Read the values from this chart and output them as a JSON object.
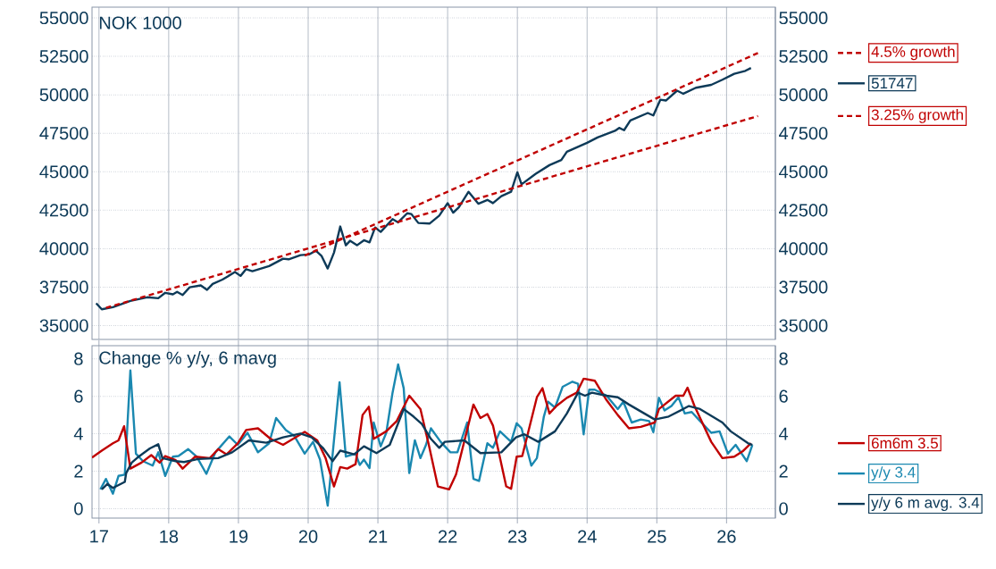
{
  "chart_data": [
    {
      "type": "line",
      "title": "NOK 1000",
      "xlim": [
        2016.9,
        2026.7
      ],
      "ylim": [
        34100,
        55700
      ],
      "y2lim": [
        34100,
        55700
      ],
      "xticks": [
        {
          "value": 2017,
          "label": null
        },
        {
          "value": 2018,
          "label": null
        },
        {
          "value": 2019,
          "label": null
        },
        {
          "value": 2020,
          "label": null
        },
        {
          "value": 2021,
          "label": null
        },
        {
          "value": 2022,
          "label": null
        },
        {
          "value": 2023,
          "label": null
        },
        {
          "value": 2024,
          "label": null
        },
        {
          "value": 2025,
          "label": null
        },
        {
          "value": 2026,
          "label": null
        }
      ],
      "yticks": [
        35000,
        37500,
        40000,
        42500,
        45000,
        47500,
        50000,
        52500,
        55000
      ],
      "y2ticks": [
        35000,
        37500,
        40000,
        42500,
        45000,
        47500,
        50000,
        52500,
        55000
      ],
      "tick_labels": "y",
      "grid": true,
      "legend": "right",
      "series": [
        {
          "name": "51747",
          "color": "#0d3a58",
          "x": [
            2016.96,
            2017.04,
            2017.2,
            2017.45,
            2017.69,
            2017.85,
            2017.95,
            2018.06,
            2018.12,
            2018.2,
            2018.3,
            2018.46,
            2018.55,
            2018.63,
            2018.77,
            2018.95,
            2019.03,
            2019.11,
            2019.2,
            2019.44,
            2019.64,
            2019.72,
            2019.89,
            2020.01,
            2020.11,
            2020.19,
            2020.28,
            2020.37,
            2020.46,
            2020.54,
            2020.6,
            2020.7,
            2020.8,
            2020.88,
            2020.96,
            2021.04,
            2021.21,
            2021.29,
            2021.42,
            2021.48,
            2021.58,
            2021.74,
            2021.88,
            2022.0,
            2022.08,
            2022.16,
            2022.3,
            2022.44,
            2022.57,
            2022.65,
            2022.77,
            2022.91,
            2023.0,
            2023.06,
            2023.26,
            2023.46,
            2023.63,
            2023.71,
            2024.0,
            2024.15,
            2024.4,
            2024.46,
            2024.53,
            2024.62,
            2024.87,
            2024.95,
            2025.05,
            2025.13,
            2025.29,
            2025.38,
            2025.56,
            2025.78,
            2025.94,
            2026.11,
            2026.27,
            2026.35
          ],
          "values": [
            36450,
            36060,
            36200,
            36600,
            36840,
            36780,
            37130,
            37030,
            37190,
            36990,
            37490,
            37610,
            37320,
            37710,
            37990,
            38480,
            38230,
            38670,
            38540,
            38870,
            39350,
            39310,
            39580,
            39620,
            39870,
            39540,
            38710,
            39740,
            41440,
            40220,
            40510,
            40220,
            40550,
            40410,
            41380,
            41090,
            41920,
            41710,
            42300,
            42250,
            41670,
            41630,
            42150,
            42960,
            42340,
            42690,
            43700,
            42920,
            43170,
            42960,
            43410,
            43700,
            44960,
            44180,
            44860,
            45430,
            45760,
            46300,
            46880,
            47230,
            47660,
            47850,
            47700,
            48330,
            48820,
            48660,
            49680,
            49630,
            50270,
            50070,
            50460,
            50650,
            50980,
            51370,
            51560,
            51747
          ]
        },
        {
          "name": "4.5% growth",
          "type": "line",
          "color": "#c00000",
          "line_style": "dashed",
          "x": [
            2019.95,
            2026.45
          ],
          "values": [
            39550,
            52720
          ]
        },
        {
          "name": "3.25% growth",
          "type": "line",
          "color": "#c00000",
          "line_style": "dashed",
          "x": [
            2017.1,
            2026.45
          ],
          "values": [
            36150,
            48620
          ]
        }
      ]
    },
    {
      "type": "line",
      "title": "Change % y/y, 6 mavg",
      "xlim": [
        2016.9,
        2026.7
      ],
      "ylim": [
        -0.5,
        8.7
      ],
      "y2lim": [
        -0.5,
        8.7
      ],
      "xticks": [
        {
          "value": 2017,
          "label": "17"
        },
        {
          "value": 2018,
          "label": "18"
        },
        {
          "value": 2019,
          "label": "19"
        },
        {
          "value": 2020,
          "label": "20"
        },
        {
          "value": 2021,
          "label": "21"
        },
        {
          "value": 2022,
          "label": "22"
        },
        {
          "value": 2023,
          "label": "23"
        },
        {
          "value": 2024,
          "label": "24"
        },
        {
          "value": 2025,
          "label": "25"
        },
        {
          "value": 2026,
          "label": "26"
        }
      ],
      "yticks": [
        0,
        2,
        4,
        6,
        8
      ],
      "y2ticks": [
        0,
        2,
        4,
        6,
        8
      ],
      "grid": true,
      "legend": "right",
      "series": [
        {
          "name": "y/y 3.4",
          "color": "#1a88b0",
          "x": [
            2017.02,
            2017.1,
            2017.2,
            2017.28,
            2017.37,
            2017.45,
            2017.53,
            2017.63,
            2017.77,
            2017.85,
            2017.95,
            2018.06,
            2018.14,
            2018.28,
            2018.4,
            2018.54,
            2018.67,
            2018.87,
            2018.99,
            2019.13,
            2019.28,
            2019.44,
            2019.54,
            2019.68,
            2019.8,
            2019.95,
            2020.07,
            2020.17,
            2020.28,
            2020.45,
            2020.54,
            2020.68,
            2020.74,
            2020.8,
            2020.88,
            2020.94,
            2021.04,
            2021.12,
            2021.21,
            2021.29,
            2021.37,
            2021.45,
            2021.53,
            2021.61,
            2021.69,
            2021.76,
            2021.9,
            2022.04,
            2022.14,
            2022.28,
            2022.37,
            2022.45,
            2022.57,
            2022.65,
            2022.75,
            2022.91,
            2022.99,
            2023.06,
            2023.2,
            2023.28,
            2023.38,
            2023.44,
            2023.54,
            2023.65,
            2023.79,
            2023.87,
            2023.95,
            2024.03,
            2024.11,
            2024.28,
            2024.44,
            2024.52,
            2024.64,
            2024.77,
            2024.89,
            2024.95,
            2025.03,
            2025.11,
            2025.21,
            2025.31,
            2025.4,
            2025.5,
            2025.62,
            2025.78,
            2025.9,
            2026.02,
            2026.13,
            2026.29,
            2026.37
          ],
          "values": [
            1.03,
            1.59,
            0.8,
            1.75,
            1.82,
            7.38,
            2.94,
            2.54,
            2.3,
            3.01,
            1.75,
            2.78,
            2.81,
            3.18,
            2.78,
            1.86,
            3.01,
            3.86,
            3.41,
            4.05,
            3.01,
            3.49,
            4.84,
            4.2,
            3.89,
            2.94,
            3.57,
            2.62,
            0.16,
            6.75,
            2.78,
            2.94,
            2.33,
            2.62,
            2.17,
            4.6,
            3.33,
            4.05,
            6.19,
            7.7,
            6.43,
            1.9,
            3.65,
            2.7,
            3.41,
            4.29,
            3.57,
            3.01,
            3.01,
            4.6,
            1.59,
            1.48,
            3.49,
            3.25,
            4.13,
            3.57,
            4.56,
            4.29,
            2.3,
            2.7,
            4.92,
            5.71,
            5.4,
            6.51,
            6.78,
            6.67,
            3.97,
            6.35,
            6.35,
            6.03,
            5.32,
            5.71,
            4.6,
            4.76,
            4.68,
            4.08,
            5.92,
            5.24,
            5.48,
            5.95,
            5.08,
            5.16,
            4.68,
            4.05,
            4.13,
            2.94,
            3.41,
            2.54,
            3.4
          ]
        },
        {
          "name": "6m6m 3.5",
          "color": "#c00000",
          "x": [
            2016.9,
            2017.04,
            2017.2,
            2017.28,
            2017.36,
            2017.45,
            2017.61,
            2017.75,
            2017.87,
            2017.95,
            2018.1,
            2018.2,
            2018.38,
            2018.59,
            2018.71,
            2018.83,
            2018.99,
            2019.11,
            2019.28,
            2019.46,
            2019.64,
            2019.95,
            2020.13,
            2020.25,
            2020.37,
            2020.46,
            2020.56,
            2020.68,
            2020.78,
            2020.87,
            2020.94,
            2021.12,
            2021.27,
            2021.45,
            2021.61,
            2021.73,
            2021.86,
            2022.02,
            2022.12,
            2022.37,
            2022.47,
            2022.57,
            2022.65,
            2022.84,
            2022.91,
            2022.99,
            2023.07,
            2023.28,
            2023.36,
            2023.46,
            2023.56,
            2023.71,
            2023.85,
            2023.95,
            2024.11,
            2024.28,
            2024.44,
            2024.6,
            2024.77,
            2024.97,
            2025.03,
            2025.27,
            2025.38,
            2025.44,
            2025.54,
            2025.78,
            2025.94,
            2026.11,
            2026.23,
            2026.35
          ],
          "values": [
            2.73,
            3.1,
            3.49,
            3.65,
            4.4,
            2.14,
            2.46,
            2.86,
            2.46,
            2.81,
            2.59,
            2.14,
            2.78,
            2.7,
            3.18,
            2.9,
            3.49,
            4.2,
            4.29,
            3.73,
            3.41,
            4.1,
            3.65,
            2.7,
            1.19,
            2.22,
            2.14,
            2.38,
            5.0,
            5.44,
            3.73,
            4.13,
            4.68,
            6.03,
            5.32,
            3.41,
            1.19,
            1.03,
            1.82,
            5.56,
            4.84,
            5.05,
            4.44,
            1.19,
            1.06,
            2.78,
            2.81,
            5.95,
            6.43,
            5.08,
            5.48,
            5.92,
            6.19,
            6.94,
            6.83,
            5.79,
            5.0,
            4.29,
            4.37,
            4.6,
            5.32,
            6.03,
            6.03,
            6.46,
            5.48,
            3.57,
            2.7,
            2.78,
            3.06,
            3.5
          ]
        },
        {
          "name": "y/y 6 m avg. 3.4",
          "color": "#0d3a58",
          "x": [
            2017.04,
            2017.12,
            2017.2,
            2017.37,
            2017.39,
            2017.47,
            2017.57,
            2017.73,
            2017.85,
            2017.91,
            2018.1,
            2018.22,
            2018.42,
            2018.71,
            2018.91,
            2019.15,
            2019.4,
            2019.64,
            2019.89,
            2020.05,
            2020.21,
            2020.35,
            2020.46,
            2020.66,
            2020.8,
            2020.98,
            2021.17,
            2021.37,
            2021.51,
            2021.63,
            2021.76,
            2021.88,
            2021.96,
            2022.24,
            2022.47,
            2022.77,
            2022.98,
            2023.1,
            2023.3,
            2023.54,
            2023.71,
            2023.87,
            2023.97,
            2024.07,
            2024.28,
            2024.44,
            2024.6,
            2024.97,
            2025.17,
            2025.46,
            2025.62,
            2025.94,
            2026.06,
            2026.31,
            2026.37
          ],
          "values": [
            1.03,
            1.32,
            1.11,
            1.43,
            1.9,
            2.46,
            2.78,
            3.22,
            3.44,
            2.7,
            2.54,
            2.49,
            2.65,
            2.7,
            3.01,
            3.65,
            3.52,
            3.81,
            4.01,
            3.81,
            3.25,
            2.54,
            3.1,
            2.9,
            3.33,
            2.97,
            3.41,
            5.32,
            4.92,
            4.52,
            3.73,
            3.25,
            3.57,
            3.65,
            2.97,
            3.01,
            3.81,
            3.97,
            3.57,
            4.13,
            5.08,
            6.19,
            6.03,
            6.19,
            6.03,
            5.95,
            5.56,
            4.76,
            4.92,
            5.48,
            5.32,
            4.6,
            4.13,
            3.49,
            3.4
          ]
        }
      ]
    }
  ]
}
